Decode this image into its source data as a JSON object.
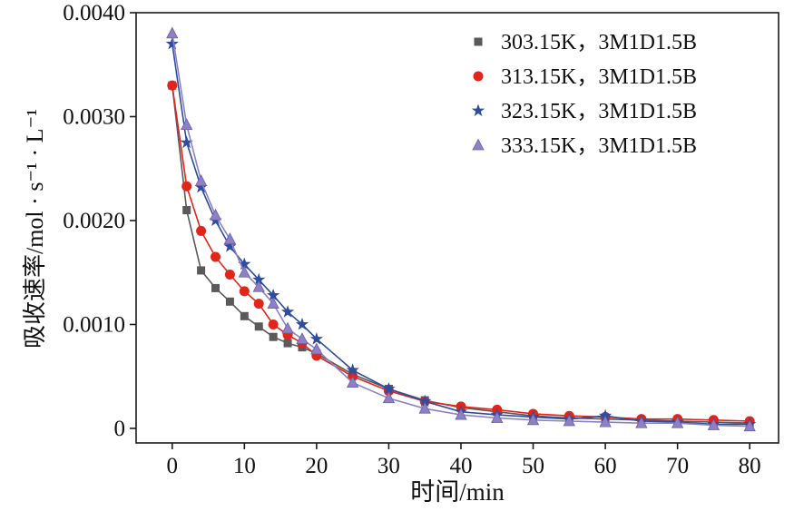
{
  "frame": {
    "background": "#ffffff",
    "axis_color": "#1a1a1a",
    "text_color": "#111111"
  },
  "chart_data": {
    "type": "line",
    "title": "",
    "xlabel": "时间/min",
    "ylabel": "吸收速率/mol · s⁻¹ · L⁻¹",
    "xlim": [
      -5,
      84
    ],
    "ylim": [
      -0.00014,
      0.004
    ],
    "grid": false,
    "legend_position": "top-right",
    "x_ticks": {
      "values": [
        0,
        10,
        20,
        30,
        40,
        50,
        60,
        70,
        80
      ],
      "labels": [
        "0",
        "10",
        "20",
        "30",
        "40",
        "50",
        "60",
        "70",
        "80"
      ]
    },
    "y_ticks": {
      "values": [
        0,
        0.001,
        0.002,
        0.003,
        0.004
      ],
      "labels": [
        "0",
        "0.0010",
        "0.0020",
        "0.0030",
        "0.0040"
      ]
    },
    "x": [
      0,
      2,
      4,
      6,
      8,
      10,
      12,
      14,
      16,
      18,
      20,
      25,
      30,
      35,
      40,
      45,
      50,
      55,
      60,
      65,
      70,
      75,
      80
    ],
    "series": [
      {
        "name": "303.15K，3M1D1.5B",
        "marker": "square",
        "color": "#5a5a5a",
        "values": [
          0.0033,
          0.0021,
          0.00152,
          0.00135,
          0.00122,
          0.00108,
          0.00098,
          0.00088,
          0.00082,
          0.00078,
          0.00072,
          0.00052,
          0.00038,
          0.00027,
          0.0002,
          0.00016,
          0.00012,
          0.0001,
          9e-05,
          8e-05,
          7e-05,
          6e-05,
          5e-05
        ]
      },
      {
        "name": "313.15K，3M1D1.5B",
        "marker": "circle",
        "color": "#e1251b",
        "values": [
          0.0033,
          0.00233,
          0.0019,
          0.00165,
          0.00148,
          0.00132,
          0.0012,
          0.001,
          0.0009,
          0.00082,
          0.0007,
          0.0005,
          0.00036,
          0.00026,
          0.00021,
          0.00018,
          0.00014,
          0.00012,
          0.00011,
          9e-05,
          9e-05,
          8e-05,
          7e-05
        ]
      },
      {
        "name": "323.15K，3M1D1.5B",
        "marker": "star",
        "color": "#2e4d9e",
        "values": [
          0.0037,
          0.00275,
          0.00232,
          0.002,
          0.00175,
          0.00158,
          0.00143,
          0.00128,
          0.00112,
          0.001,
          0.00086,
          0.00056,
          0.00038,
          0.00026,
          0.00016,
          0.00013,
          0.00011,
          9e-05,
          0.00012,
          7e-05,
          6e-05,
          4e-05,
          4e-05
        ]
      },
      {
        "name": "333.15K，3M1D1.5B",
        "marker": "triangle",
        "color": "#8d80c5",
        "values": [
          0.0038,
          0.00292,
          0.00238,
          0.00205,
          0.00182,
          0.0015,
          0.00136,
          0.0012,
          0.00096,
          0.00086,
          0.00076,
          0.00044,
          0.00029,
          0.00019,
          0.00013,
          0.0001,
          8e-05,
          7e-05,
          6e-05,
          5e-05,
          5e-05,
          3e-05,
          2e-05
        ]
      }
    ]
  }
}
